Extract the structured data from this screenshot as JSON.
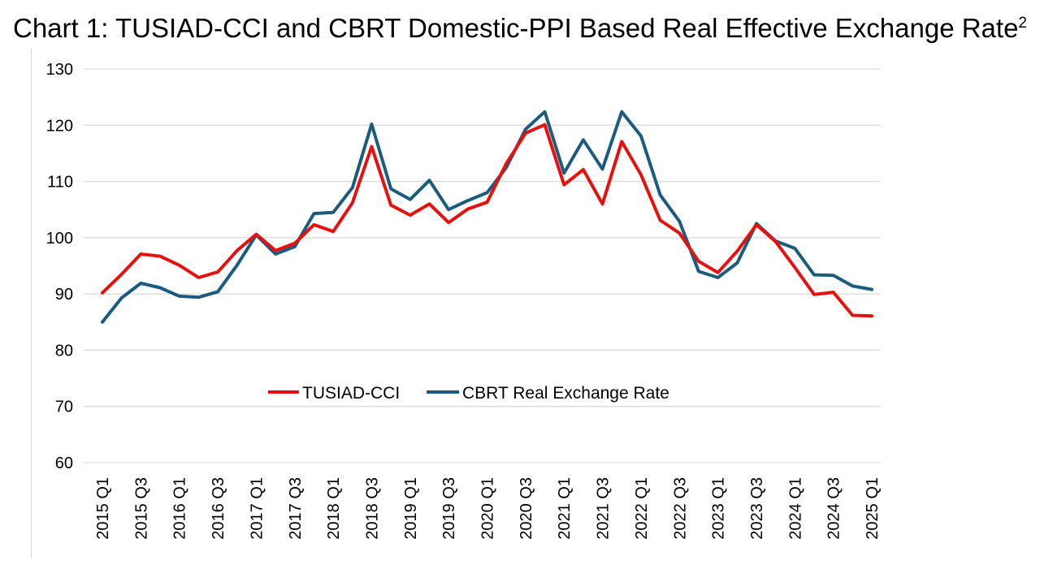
{
  "chart_data": {
    "type": "line",
    "title": "Chart 1: TUSIAD-CCI and CBRT Domestic-PPI Based Real Effective Exchange Rate",
    "title_superscript": "2",
    "xlabel": "",
    "ylabel": "",
    "ylim": [
      60,
      130
    ],
    "yticks": [
      "60",
      "70",
      "80",
      "90",
      "100",
      "110",
      "120",
      "130"
    ],
    "grid": true,
    "legend_position": "center",
    "colors": {
      "tusiad": "#e8100f",
      "cbrt": "#1b5b7e",
      "grid": "#d9d9d9"
    },
    "xtick_labels": [
      "2015 Q1",
      "2015 Q3",
      "2016 Q1",
      "2016 Q3",
      "2017 Q1",
      "2017 Q3",
      "2018 Q1",
      "2018 Q3",
      "2019 Q1",
      "2019 Q3",
      "2020 Q1",
      "2020 Q3",
      "2021 Q1",
      "2021 Q3",
      "2022 Q1",
      "2022 Q3",
      "2023 Q1",
      "2023 Q3",
      "2024 Q1",
      "2024 Q3",
      "2025 Q1"
    ],
    "categories": [
      "2015 Q1",
      "2015 Q2",
      "2015 Q3",
      "2015 Q4",
      "2016 Q1",
      "2016 Q2",
      "2016 Q3",
      "2016 Q4",
      "2017 Q1",
      "2017 Q2",
      "2017 Q3",
      "2017 Q4",
      "2018 Q1",
      "2018 Q2",
      "2018 Q3",
      "2018 Q4",
      "2019 Q1",
      "2019 Q2",
      "2019 Q3",
      "2019 Q4",
      "2020 Q1",
      "2020 Q2",
      "2020 Q3",
      "2020 Q4",
      "2021 Q1",
      "2021 Q2",
      "2021 Q3",
      "2021 Q4",
      "2022 Q1",
      "2022 Q2",
      "2022 Q3",
      "2022 Q4",
      "2023 Q1",
      "2023 Q2",
      "2023 Q3",
      "2023 Q4",
      "2024 Q1",
      "2024 Q2",
      "2024 Q3",
      "2024 Q4",
      "2025 Q1"
    ],
    "series": [
      {
        "name": "TUSIAD-CCI",
        "color": "#e8100f",
        "values": [
          90.2,
          93.5,
          97.1,
          96.7,
          95.1,
          92.9,
          93.9,
          97.7,
          100.6,
          97.7,
          99.0,
          102.3,
          101.1,
          106.2,
          116.2,
          105.8,
          104.0,
          106.0,
          102.7,
          105.1,
          106.3,
          113.2,
          118.6,
          120.1,
          109.4,
          112.1,
          106.0,
          117.1,
          111.2,
          103.1,
          100.8,
          95.8,
          93.8,
          97.6,
          102.3,
          99.3,
          94.7,
          89.9,
          90.3,
          86.2,
          86.1
        ]
      },
      {
        "name": "CBRT Real Exchange Rate",
        "color": "#1b5b7e",
        "values": [
          85.0,
          89.3,
          91.9,
          91.1,
          89.6,
          89.4,
          90.4,
          95.1,
          100.5,
          97.1,
          98.4,
          104.3,
          104.5,
          108.9,
          120.2,
          108.7,
          106.8,
          110.2,
          105.0,
          106.6,
          108.0,
          112.5,
          119.3,
          122.4,
          111.5,
          117.4,
          112.2,
          122.4,
          118.1,
          107.6,
          102.9,
          94.0,
          92.9,
          95.5,
          102.5,
          99.4,
          98.1,
          93.4,
          93.3,
          91.4,
          90.8
        ]
      }
    ]
  }
}
